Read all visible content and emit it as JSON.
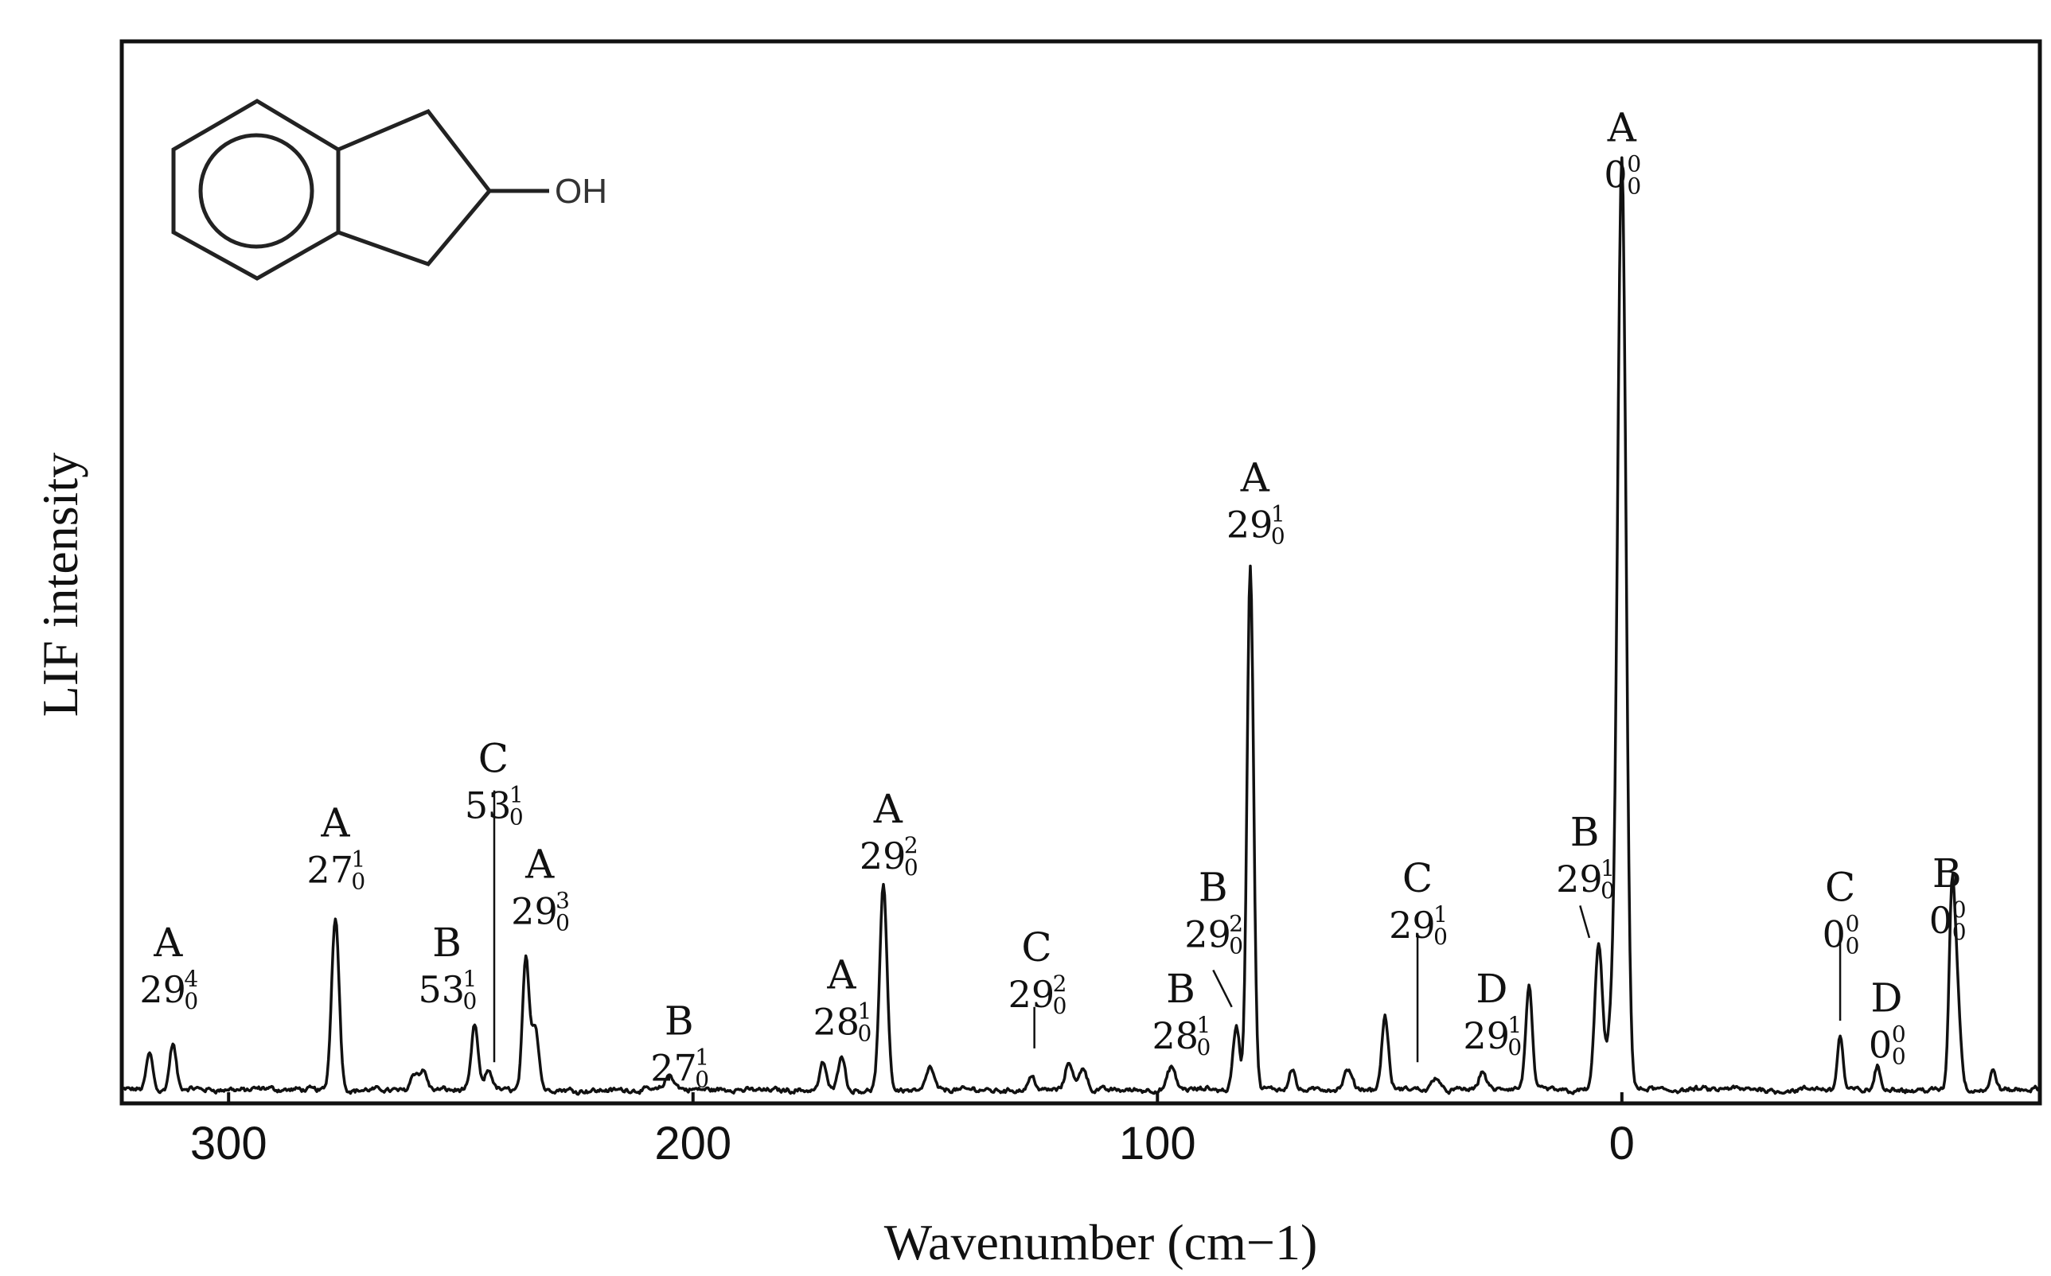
{
  "chart_data": {
    "type": "line",
    "title": "",
    "xlabel": "Wavenumber (cm−1)",
    "ylabel": "LIF intensity",
    "x_reversed": true,
    "xlim": [
      323,
      -90
    ],
    "ylim": [
      0,
      1.05
    ],
    "xticks": [
      300,
      200,
      100,
      0
    ],
    "grid": false,
    "legend": "none",
    "inset": {
      "substituent_label": "OH"
    },
    "series": [
      {
        "peaks": [
          {
            "x": 317,
            "h": 0.04,
            "w": 0.7
          },
          {
            "x": 312,
            "h": 0.05,
            "w": 0.7
          },
          {
            "x": 277,
            "h": 0.19,
            "w": 0.8
          },
          {
            "x": 260,
            "h": 0.02,
            "w": 0.8
          },
          {
            "x": 258,
            "h": 0.02,
            "w": 0.8
          },
          {
            "x": 247,
            "h": 0.07,
            "w": 0.7
          },
          {
            "x": 244,
            "h": 0.02,
            "w": 0.8
          },
          {
            "x": 236,
            "h": 0.14,
            "w": 0.7
          },
          {
            "x": 234,
            "h": 0.07,
            "w": 0.8
          },
          {
            "x": 205,
            "h": 0.015,
            "w": 1.0
          },
          {
            "x": 172,
            "h": 0.03,
            "w": 0.7
          },
          {
            "x": 168,
            "h": 0.04,
            "w": 0.7
          },
          {
            "x": 159,
            "h": 0.22,
            "w": 0.8
          },
          {
            "x": 149,
            "h": 0.025,
            "w": 0.8
          },
          {
            "x": 127,
            "h": 0.015,
            "w": 0.8
          },
          {
            "x": 119,
            "h": 0.03,
            "w": 0.8
          },
          {
            "x": 116,
            "h": 0.025,
            "w": 0.8
          },
          {
            "x": 97,
            "h": 0.025,
            "w": 0.8
          },
          {
            "x": 83,
            "h": 0.07,
            "w": 0.7
          },
          {
            "x": 80,
            "h": 0.57,
            "w": 0.7
          },
          {
            "x": 71,
            "h": 0.025,
            "w": 0.7
          },
          {
            "x": 59,
            "h": 0.02,
            "w": 0.8
          },
          {
            "x": 51,
            "h": 0.08,
            "w": 0.7
          },
          {
            "x": 40,
            "h": 0.015,
            "w": 0.8
          },
          {
            "x": 30,
            "h": 0.02,
            "w": 0.8
          },
          {
            "x": 20,
            "h": 0.11,
            "w": 0.7
          },
          {
            "x": 5,
            "h": 0.16,
            "w": 0.8
          },
          {
            "x": 2,
            "h": 0.08,
            "w": 1.0
          },
          {
            "x": 0,
            "h": 1.0,
            "w": 0.9
          },
          {
            "x": -47,
            "h": 0.06,
            "w": 0.6
          },
          {
            "x": -55,
            "h": 0.025,
            "w": 0.6
          },
          {
            "x": -71,
            "h": 0.17,
            "w": 0.6
          },
          {
            "x": -72,
            "h": 0.12,
            "w": 0.8
          },
          {
            "x": -80,
            "h": 0.02,
            "w": 0.6
          }
        ]
      }
    ],
    "annotations": [
      {
        "x": 313,
        "y": 0.145,
        "label": "A",
        "num": "29",
        "sup": "4",
        "sub": "0"
      },
      {
        "x": 277,
        "y": 0.275,
        "label": "A",
        "num": "27",
        "sup": "1",
        "sub": "0"
      },
      {
        "x": 253,
        "y": 0.145,
        "label": "B",
        "num": "53",
        "sup": "1",
        "sub": "0"
      },
      {
        "x": 243,
        "y": 0.345,
        "label": "C",
        "num": "53",
        "sup": "1",
        "sub": "0"
      },
      {
        "x": 233,
        "y": 0.23,
        "label": "A",
        "num": "29",
        "sup": "3",
        "sub": "0"
      },
      {
        "x": 203,
        "y": 0.06,
        "label": "B",
        "num": "27",
        "sup": "1",
        "sub": "0"
      },
      {
        "x": 168,
        "y": 0.11,
        "label": "A",
        "num": "28",
        "sup": "1",
        "sub": "0"
      },
      {
        "x": 158,
        "y": 0.29,
        "label": "A",
        "num": "29",
        "sup": "2",
        "sub": "0"
      },
      {
        "x": 126,
        "y": 0.14,
        "label": "C",
        "num": "29",
        "sup": "2",
        "sub": "0"
      },
      {
        "x": 88,
        "y": 0.205,
        "label": "B",
        "num": "29",
        "sup": "2",
        "sub": "0"
      },
      {
        "x": 95,
        "y": 0.095,
        "label": "B",
        "num": "28",
        "sup": "1",
        "sub": "0"
      },
      {
        "x": 79,
        "y": 0.65,
        "label": "A",
        "num": "29",
        "sup": "1",
        "sub": "0"
      },
      {
        "x": 44,
        "y": 0.215,
        "label": "C",
        "num": "29",
        "sup": "1",
        "sub": "0"
      },
      {
        "x": 28,
        "y": 0.095,
        "label": "D",
        "num": "29",
        "sup": "1",
        "sub": "0"
      },
      {
        "x": 8,
        "y": 0.265,
        "label": "B",
        "num": "29",
        "sup": "1",
        "sub": "0"
      },
      {
        "x": 0,
        "y": 1.03,
        "label": "A",
        "num": "0",
        "sup": "0",
        "sub": "0"
      },
      {
        "x": -47,
        "y": 0.205,
        "label": "C",
        "num": "0",
        "sup": "0",
        "sub": "0"
      },
      {
        "x": -57,
        "y": 0.085,
        "label": "D",
        "num": "0",
        "sup": "0",
        "sub": "0"
      },
      {
        "x": -70,
        "y": 0.22,
        "label": "B",
        "num": "0",
        "sup": "0",
        "sub": "0"
      }
    ],
    "leader_lines": [
      {
        "x1": 242.8,
        "y1": 0.325,
        "x2": 242.8,
        "y2": 0.03
      },
      {
        "x1": 126.5,
        "y1": 0.09,
        "x2": 126.5,
        "y2": 0.045
      },
      {
        "x1": 88,
        "y1": 0.13,
        "x2": 84,
        "y2": 0.09
      },
      {
        "x1": 44,
        "y1": 0.17,
        "x2": 44,
        "y2": 0.03
      },
      {
        "x1": 9,
        "y1": 0.2,
        "x2": 7,
        "y2": 0.165
      },
      {
        "x1": -47,
        "y1": 0.175,
        "x2": -47,
        "y2": 0.075
      }
    ]
  }
}
